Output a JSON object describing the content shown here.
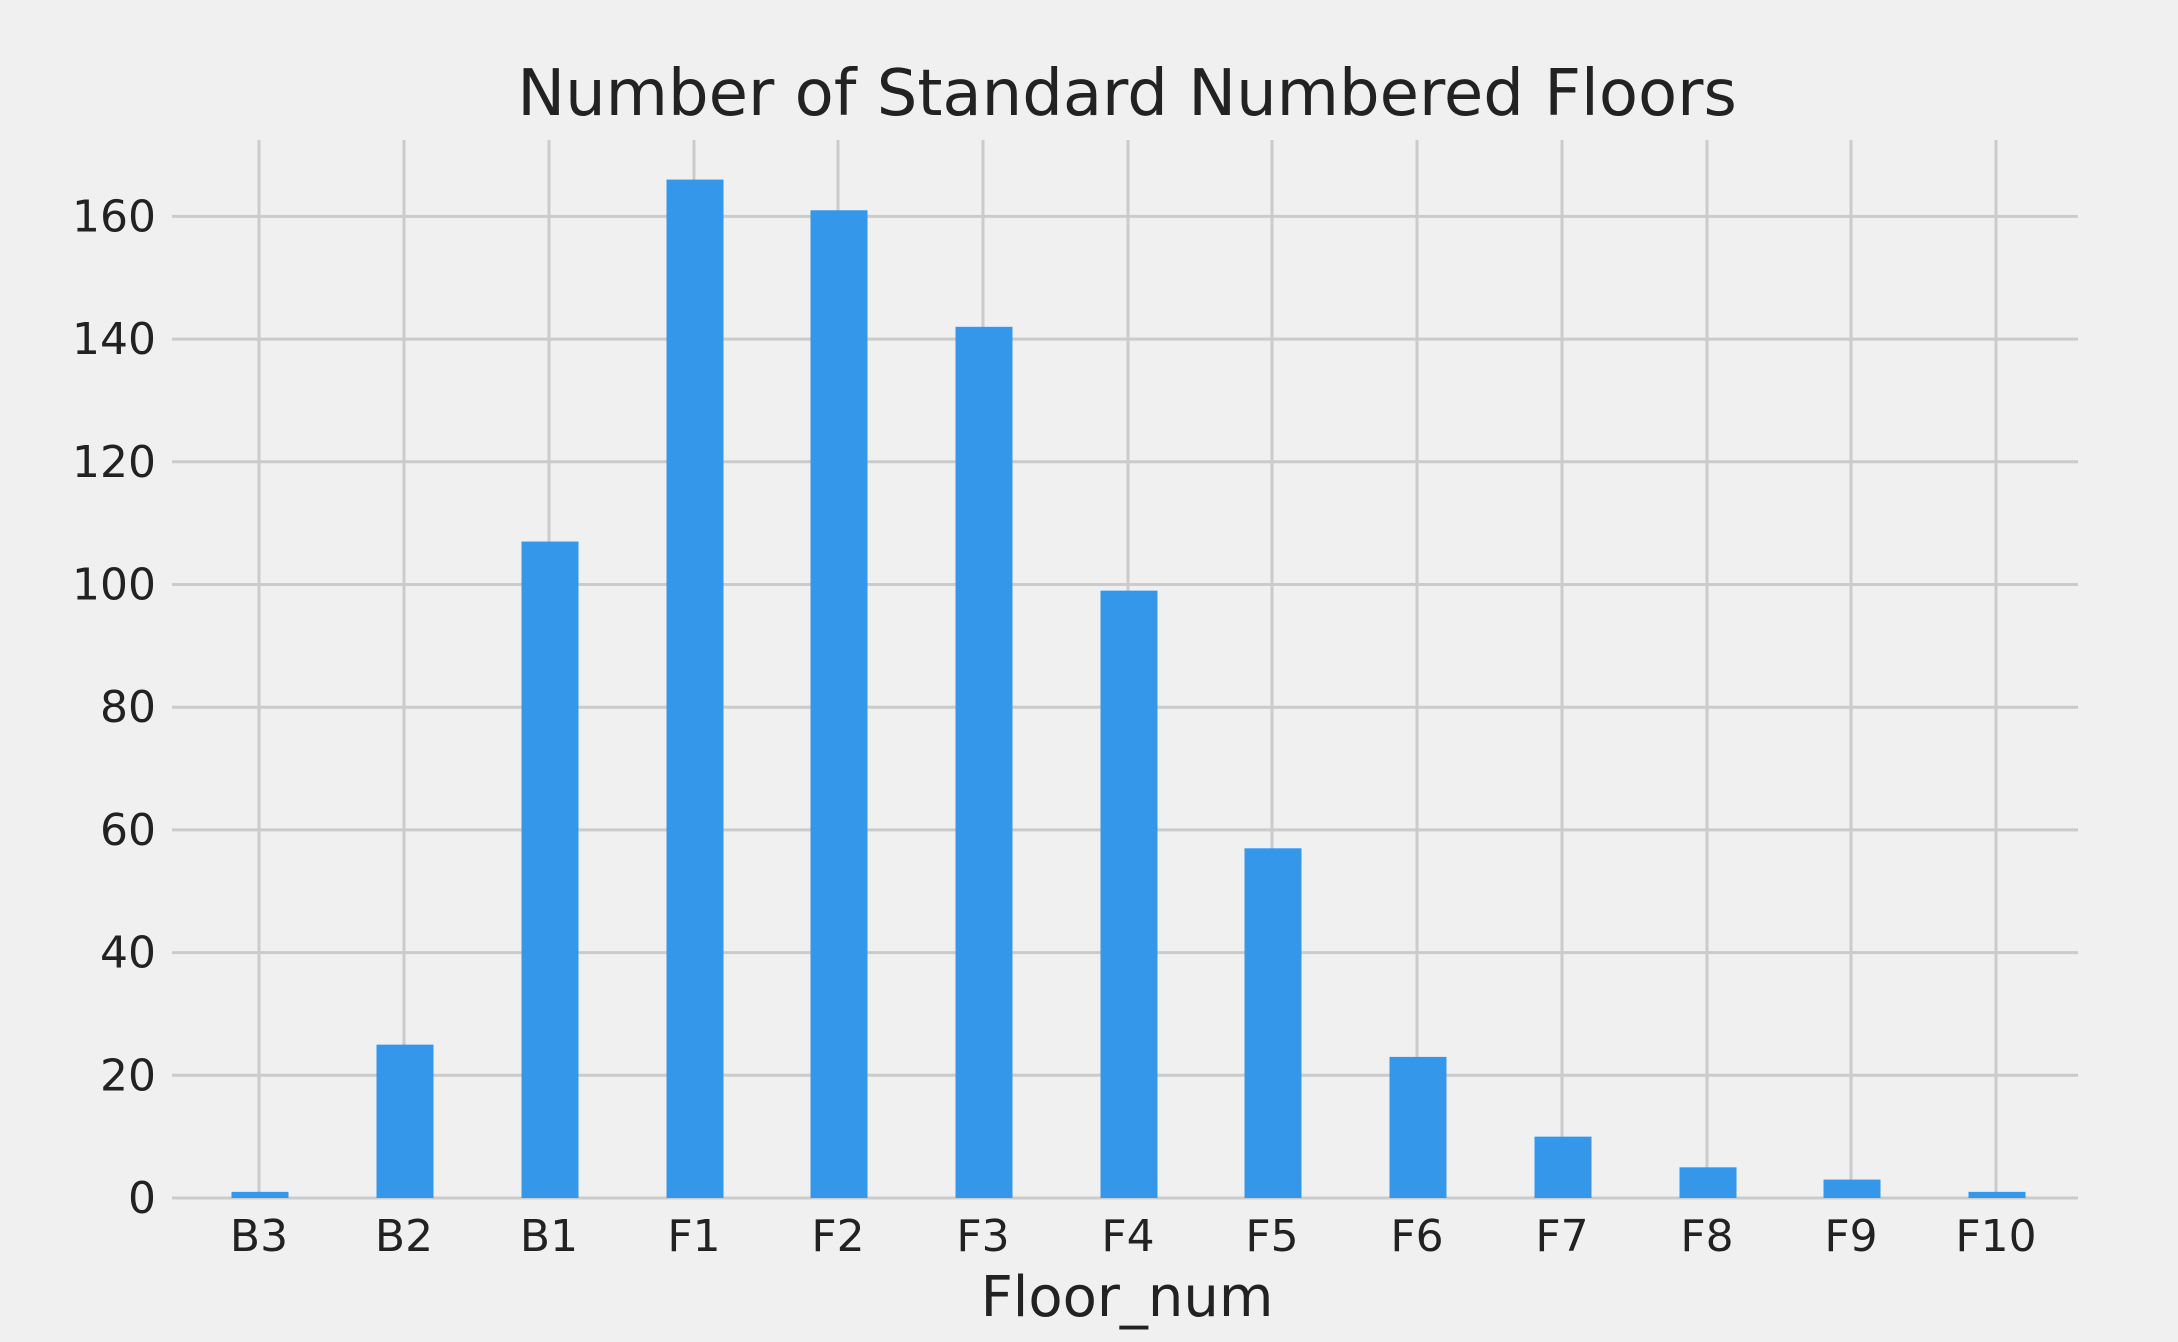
{
  "chart_data": {
    "type": "bar",
    "title": "Number of Standard Numbered Floors",
    "xlabel": "Floor_num",
    "ylabel": "",
    "bar_color": "#3497ea",
    "background": "#f0f0f0",
    "grid": true,
    "ylim": [
      0,
      172
    ],
    "y_ticks": [
      0,
      20,
      40,
      60,
      80,
      100,
      120,
      140,
      160
    ],
    "x_ticks": [
      -3,
      -2,
      -1,
      1,
      2,
      3,
      4,
      5,
      6,
      7,
      8,
      9,
      10
    ],
    "tick_labels": [
      "B3",
      "B2",
      "B1",
      "F1",
      "F2",
      "F3",
      "F4",
      "F5",
      "F6",
      "F7",
      "F8",
      "F9",
      "F10"
    ],
    "bars": [
      {
        "floor": -3,
        "value": 1
      },
      {
        "floor": -2,
        "value": 25
      },
      {
        "floor": -1,
        "value": 107
      },
      {
        "floor": 1,
        "value": 166
      },
      {
        "floor": 2,
        "value": 161
      },
      {
        "floor": 3,
        "value": 142
      },
      {
        "floor": 4,
        "value": 99
      },
      {
        "floor": 5,
        "value": 57
      },
      {
        "floor": 6,
        "value": 23
      },
      {
        "floor": 7,
        "value": 10
      },
      {
        "floor": 8,
        "value": 5
      },
      {
        "floor": 9,
        "value": 3
      },
      {
        "floor": 10,
        "value": 1
      }
    ]
  }
}
